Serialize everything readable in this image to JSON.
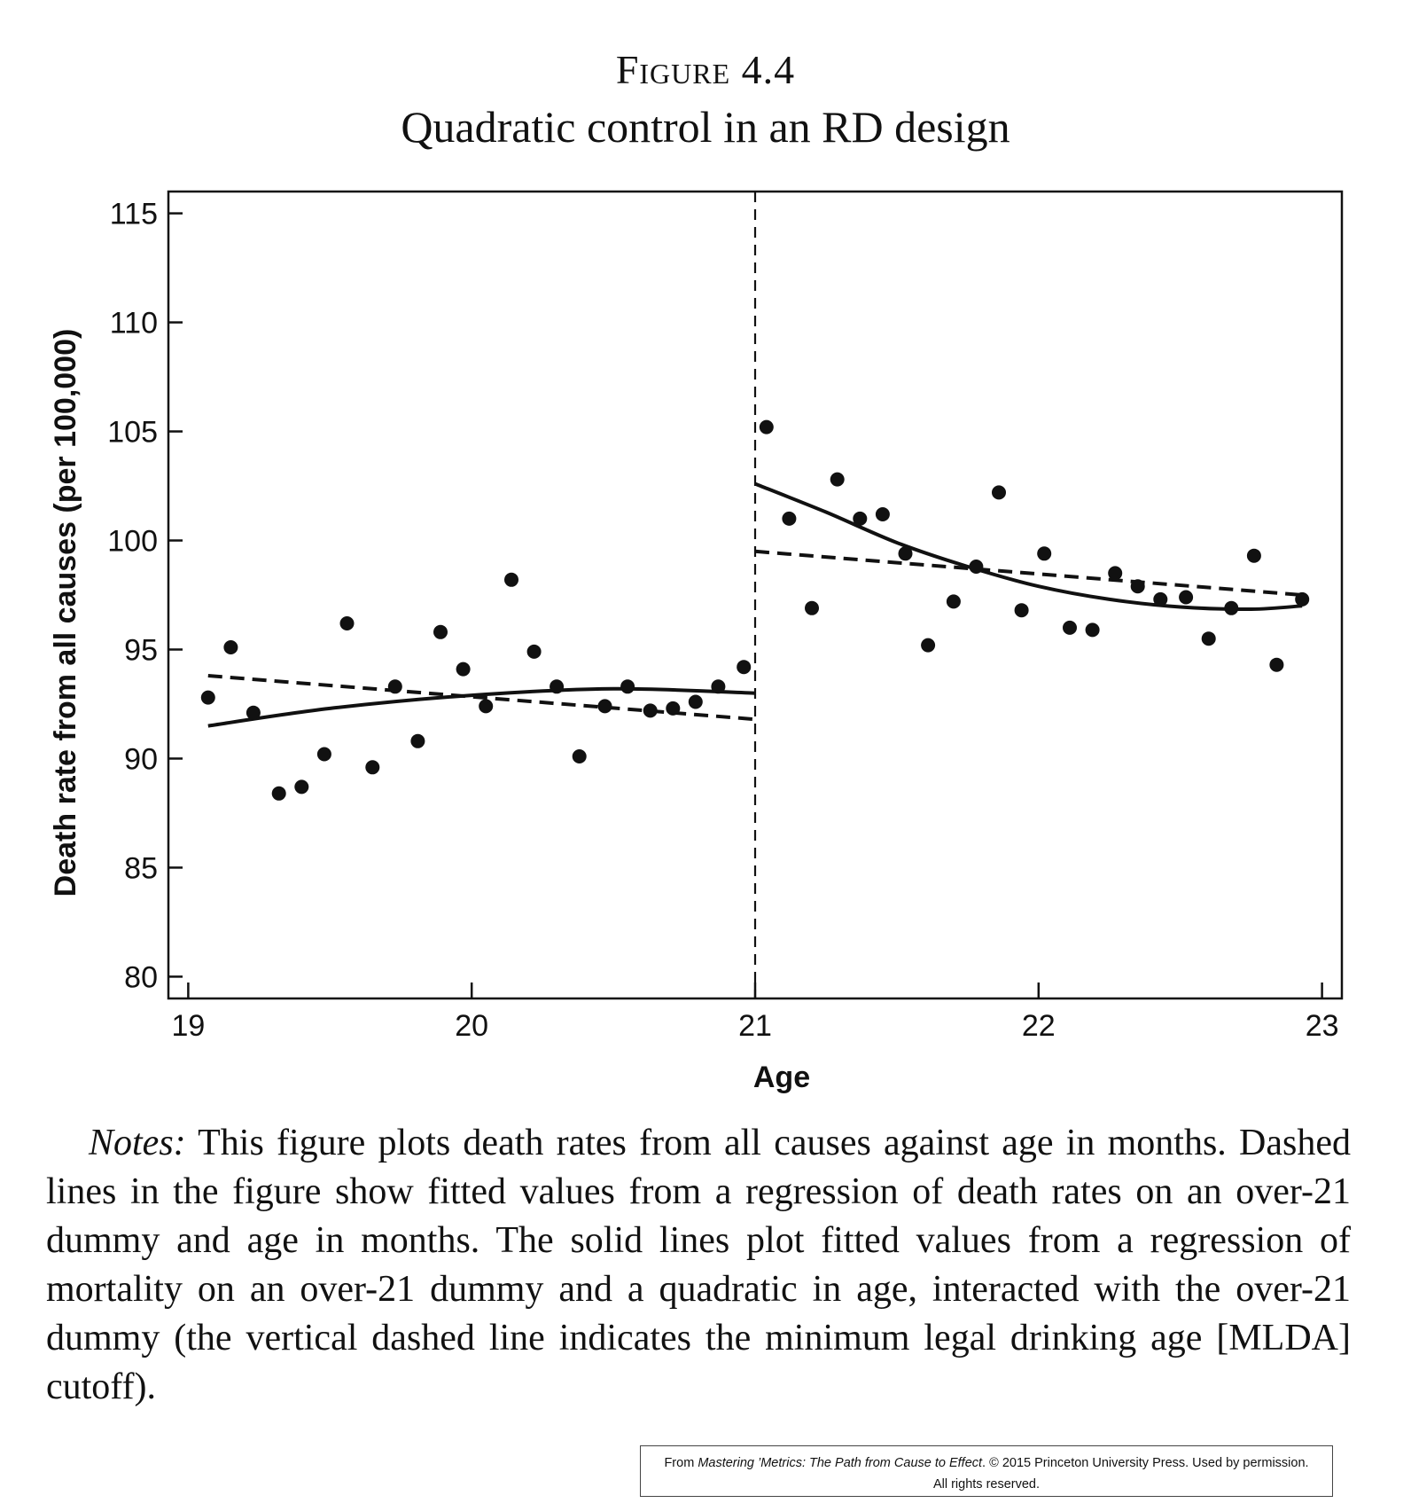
{
  "figure": {
    "label": "Figure 4.4",
    "title": "Quadratic control in an RD design"
  },
  "chart_data": {
    "type": "scatter",
    "xlabel": "Age",
    "ylabel": "Death rate from all causes (per 100,000)",
    "xlim": [
      18.93,
      23.07
    ],
    "ylim": [
      79.0,
      116.0
    ],
    "xticks": [
      19,
      20,
      21,
      22,
      23
    ],
    "yticks": [
      80,
      85,
      90,
      95,
      100,
      105,
      110,
      115
    ],
    "grid": false,
    "cutoff": 21,
    "points": [
      [
        19.07,
        92.8
      ],
      [
        19.15,
        95.1
      ],
      [
        19.23,
        92.1
      ],
      [
        19.32,
        88.4
      ],
      [
        19.4,
        88.7
      ],
      [
        19.48,
        90.2
      ],
      [
        19.56,
        96.2
      ],
      [
        19.65,
        89.6
      ],
      [
        19.73,
        93.3
      ],
      [
        19.81,
        90.8
      ],
      [
        19.89,
        95.8
      ],
      [
        19.97,
        94.1
      ],
      [
        20.05,
        92.4
      ],
      [
        20.14,
        98.2
      ],
      [
        20.22,
        94.9
      ],
      [
        20.3,
        93.3
      ],
      [
        20.38,
        90.1
      ],
      [
        20.47,
        92.4
      ],
      [
        20.55,
        93.3
      ],
      [
        20.63,
        92.2
      ],
      [
        20.71,
        92.3
      ],
      [
        20.79,
        92.6
      ],
      [
        20.87,
        93.3
      ],
      [
        20.96,
        94.2
      ],
      [
        21.04,
        105.2
      ],
      [
        21.12,
        101.0
      ],
      [
        21.2,
        96.9
      ],
      [
        21.29,
        102.8
      ],
      [
        21.37,
        101.0
      ],
      [
        21.45,
        101.2
      ],
      [
        21.53,
        99.4
      ],
      [
        21.61,
        95.2
      ],
      [
        21.7,
        97.2
      ],
      [
        21.78,
        98.8
      ],
      [
        21.86,
        102.2
      ],
      [
        21.94,
        96.8
      ],
      [
        22.02,
        99.4
      ],
      [
        22.11,
        96.0
      ],
      [
        22.19,
        95.9
      ],
      [
        22.27,
        98.5
      ],
      [
        22.35,
        97.9
      ],
      [
        22.43,
        97.3
      ],
      [
        22.52,
        97.4
      ],
      [
        22.6,
        95.5
      ],
      [
        22.68,
        96.9
      ],
      [
        22.76,
        99.3
      ],
      [
        22.84,
        94.3
      ],
      [
        22.93,
        97.3
      ]
    ],
    "linear_fit": [
      {
        "segment": "under-21",
        "x": [
          19.07,
          21.0
        ],
        "y": [
          93.8,
          91.8
        ]
      },
      {
        "segment": "over-21",
        "x": [
          21.0,
          22.93
        ],
        "y": [
          99.5,
          97.5
        ]
      }
    ],
    "quadratic_fit": [
      {
        "segment": "under-21",
        "x": [
          19.07,
          19.5,
          20.0,
          20.5,
          21.0
        ],
        "y": [
          91.5,
          92.3,
          92.9,
          93.2,
          93.0
        ]
      },
      {
        "segment": "over-21",
        "x": [
          21.0,
          21.25,
          21.5,
          21.75,
          22.0,
          22.25,
          22.5,
          22.75,
          22.93
        ],
        "y": [
          102.6,
          101.3,
          99.9,
          98.8,
          97.9,
          97.3,
          96.95,
          96.85,
          97.0
        ]
      }
    ]
  },
  "notes": {
    "label": "Notes:",
    "text": "This figure plots death rates from all causes against age in months. Dashed lines in the figure show fitted values from a regression of death rates on an over-21 dummy and age in months. The solid lines plot fitted values from a regression of mortality on an over-21 dummy and a quadratic in age, interacted with the over-21 dummy (the vertical dashed line indicates the minimum legal drinking age [MLDA] cutoff)."
  },
  "credit": {
    "prefix": "From ",
    "book": "Mastering ’Metrics: The Path from Cause to Effect",
    "suffix": ". © 2015 Princeton University Press. Used by permission.",
    "line2": "All rights reserved."
  }
}
